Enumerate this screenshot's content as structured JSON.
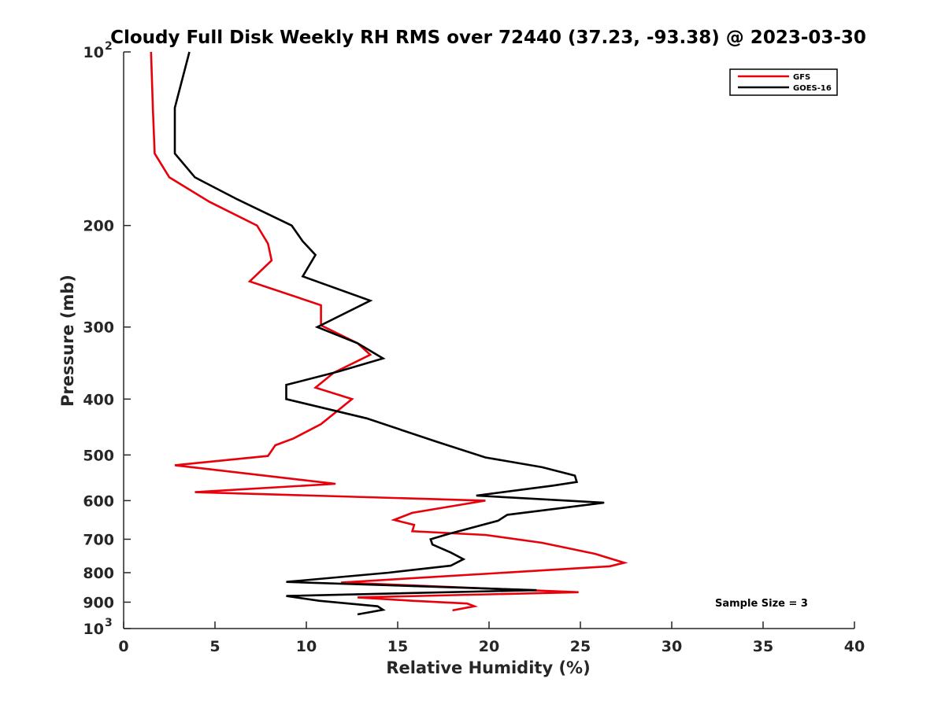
{
  "chart_data": {
    "type": "line",
    "title": "Cloudy Full Disk Weekly RH RMS over 72440 (37.23, -93.38) @ 2023-03-30",
    "xlabel": "Relative Humidity (%)",
    "ylabel": "Pressure (mb)",
    "xlim": [
      0,
      40
    ],
    "ylim": [
      100,
      1000
    ],
    "y_scale": "log",
    "y_reversed": true,
    "grid": false,
    "legend_position": "top-right",
    "x_ticks": [
      "0",
      "5",
      "10",
      "15",
      "20",
      "25",
      "30",
      "35",
      "40"
    ],
    "y_ticks": [
      {
        "value": 100,
        "label": "10",
        "exponent": "2"
      },
      {
        "value": 200,
        "label": "200"
      },
      {
        "value": 300,
        "label": "300"
      },
      {
        "value": 400,
        "label": "400"
      },
      {
        "value": 500,
        "label": "500"
      },
      {
        "value": 600,
        "label": "600"
      },
      {
        "value": 700,
        "label": "700"
      },
      {
        "value": 800,
        "label": "800"
      },
      {
        "value": 900,
        "label": "900"
      },
      {
        "value": 1000,
        "label": "10",
        "exponent": "3"
      }
    ],
    "annotation": "Sample Size = 3",
    "series": [
      {
        "name": "GFS",
        "color": "#e8000b",
        "points": [
          [
            1.5,
            100
          ],
          [
            1.6,
            125
          ],
          [
            1.7,
            150
          ],
          [
            2.5,
            165
          ],
          [
            4.7,
            182
          ],
          [
            7.3,
            200
          ],
          [
            7.9,
            215
          ],
          [
            8.1,
            230
          ],
          [
            6.9,
            250
          ],
          [
            10.8,
            275
          ],
          [
            10.8,
            298
          ],
          [
            12.8,
            320
          ],
          [
            13.5,
            335
          ],
          [
            11.5,
            360
          ],
          [
            10.5,
            382
          ],
          [
            12.5,
            400
          ],
          [
            10.8,
            442
          ],
          [
            9.3,
            468
          ],
          [
            8.3,
            481
          ],
          [
            7.9,
            502
          ],
          [
            2.8,
            521
          ],
          [
            8.4,
            546
          ],
          [
            11.6,
            561
          ],
          [
            3.9,
            580
          ],
          [
            19.8,
            600
          ],
          [
            15.8,
            630
          ],
          [
            14.8,
            648
          ],
          [
            15.9,
            661
          ],
          [
            15.8,
            678
          ],
          [
            19.8,
            688
          ],
          [
            22.9,
            710
          ],
          [
            25.8,
            742
          ],
          [
            27.4,
            769
          ],
          [
            26.6,
            780
          ],
          [
            11.9,
            832
          ],
          [
            24.9,
            865
          ],
          [
            12.8,
            883
          ],
          [
            15.8,
            895
          ],
          [
            18.8,
            905
          ],
          [
            19.2,
            915
          ],
          [
            18.0,
            930
          ]
        ]
      },
      {
        "name": "GOES-16",
        "color": "#000000",
        "points": [
          [
            3.6,
            100
          ],
          [
            2.8,
            125
          ],
          [
            2.8,
            150
          ],
          [
            3.9,
            165
          ],
          [
            6.2,
            180
          ],
          [
            9.2,
            200
          ],
          [
            9.8,
            213
          ],
          [
            10.5,
            225
          ],
          [
            9.8,
            245
          ],
          [
            13.5,
            270
          ],
          [
            10.6,
            300
          ],
          [
            12.8,
            320
          ],
          [
            14.2,
            340
          ],
          [
            11.8,
            358
          ],
          [
            8.9,
            378
          ],
          [
            8.9,
            400
          ],
          [
            13.3,
            432
          ],
          [
            17.2,
            475
          ],
          [
            19.8,
            505
          ],
          [
            22.9,
            525
          ],
          [
            24.7,
            543
          ],
          [
            24.8,
            557
          ],
          [
            23.5,
            565
          ],
          [
            19.3,
            588
          ],
          [
            26.3,
            605
          ],
          [
            21.0,
            635
          ],
          [
            20.5,
            650
          ],
          [
            17.8,
            685
          ],
          [
            16.8,
            700
          ],
          [
            16.9,
            715
          ],
          [
            17.9,
            738
          ],
          [
            18.6,
            758
          ],
          [
            17.9,
            778
          ],
          [
            14.5,
            800
          ],
          [
            8.9,
            830
          ],
          [
            22.6,
            858
          ],
          [
            8.9,
            878
          ],
          [
            10.7,
            895
          ],
          [
            13.9,
            915
          ],
          [
            14.2,
            928
          ],
          [
            12.8,
            945
          ]
        ]
      }
    ]
  }
}
